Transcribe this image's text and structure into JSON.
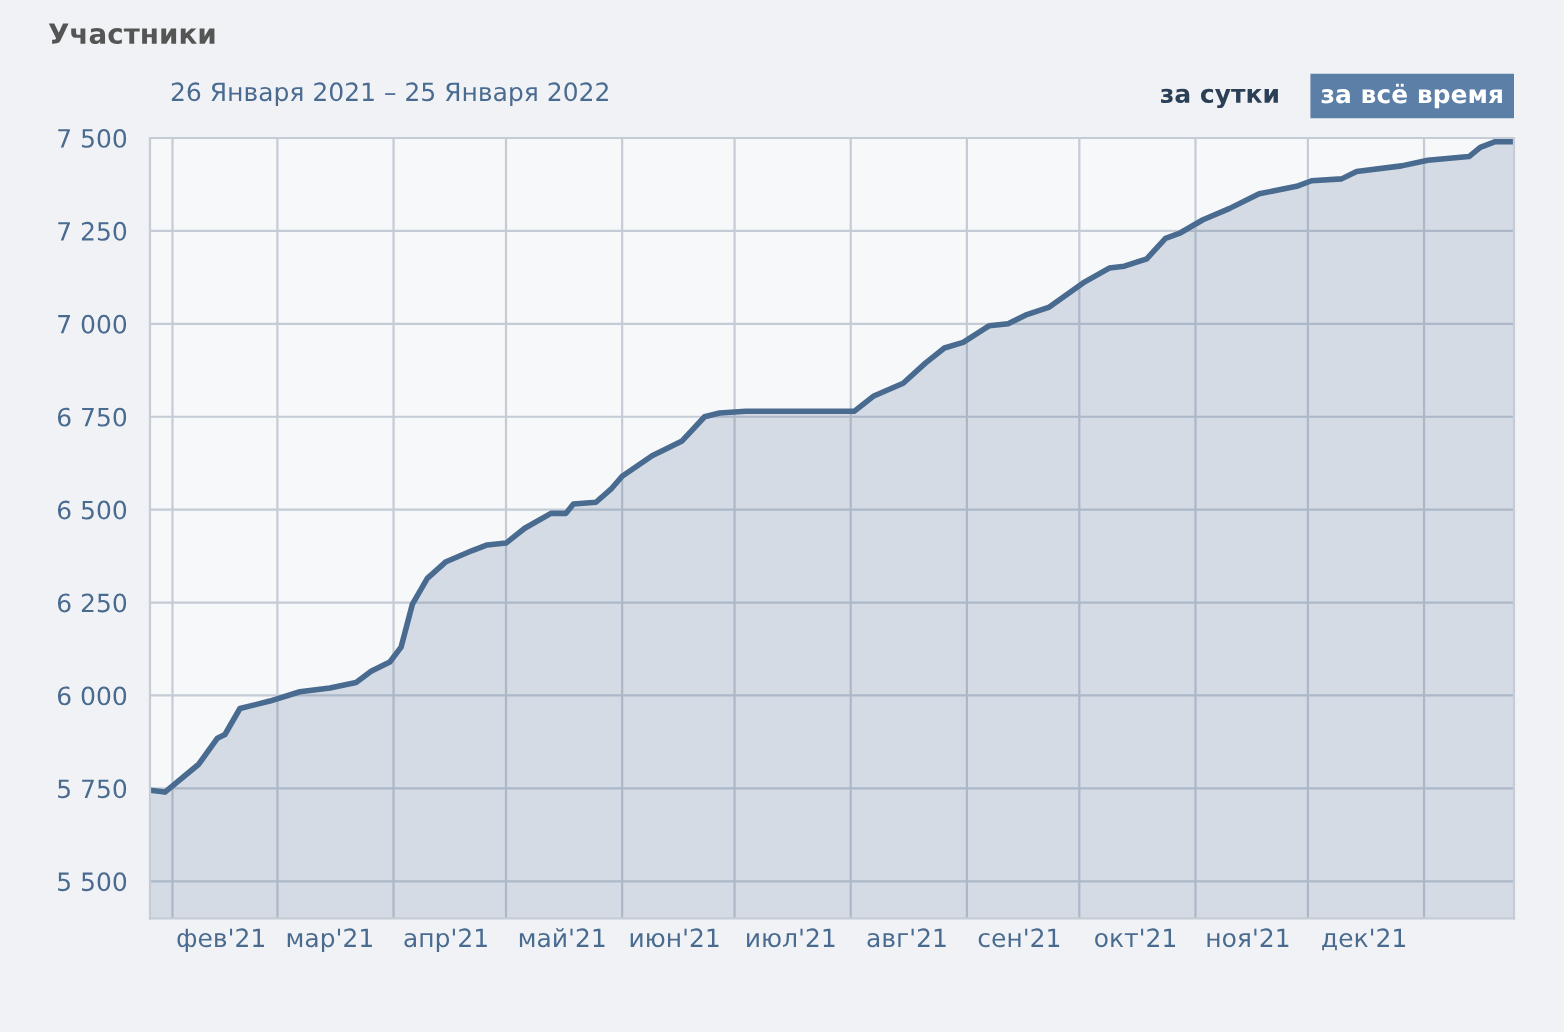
{
  "chart_data": {
    "type": "area",
    "title": "Участники",
    "subtitle": "26 Января 2021 – 25 Января 2022",
    "annotations": [
      "за сутки",
      "за всё время"
    ],
    "x": [
      "2021-01-26",
      "2021-01-30",
      "2021-02-08",
      "2021-02-13",
      "2021-02-15",
      "2021-02-19",
      "2021-02-27",
      "2021-03-07",
      "2021-03-15",
      "2021-03-22",
      "2021-03-26",
      "2021-03-31",
      "2021-04-03",
      "2021-04-06",
      "2021-04-10",
      "2021-04-15",
      "2021-04-22",
      "2021-04-26",
      "2021-05-01",
      "2021-05-06",
      "2021-05-13",
      "2021-05-17",
      "2021-05-19",
      "2021-05-25",
      "2021-05-29",
      "2021-06-01",
      "2021-06-09",
      "2021-06-17",
      "2021-06-23",
      "2021-06-27",
      "2021-07-04",
      "2021-07-12",
      "2021-08-02",
      "2021-08-07",
      "2021-08-15",
      "2021-08-21",
      "2021-08-26",
      "2021-08-31",
      "2021-09-07",
      "2021-09-12",
      "2021-09-17",
      "2021-09-23",
      "2021-10-02",
      "2021-10-09",
      "2021-10-13",
      "2021-10-19",
      "2021-10-24",
      "2021-10-28",
      "2021-11-03",
      "2021-11-10",
      "2021-11-18",
      "2021-11-28",
      "2021-12-02",
      "2021-12-10",
      "2021-12-14",
      "2021-12-26",
      "2022-01-02",
      "2022-01-13",
      "2022-01-16",
      "2022-01-20",
      "2022-01-25"
    ],
    "series": [
      {
        "color": "#4a6b90",
        "values": [
          5745,
          5740,
          5815,
          5885,
          5895,
          5965,
          5985,
          6010,
          6020,
          6035,
          6065,
          6090,
          6130,
          6245,
          6315,
          6360,
          6390,
          6405,
          6410,
          6450,
          6490,
          6490,
          6515,
          6520,
          6555,
          6590,
          6645,
          6685,
          6750,
          6760,
          6765,
          6765,
          6765,
          6805,
          6840,
          6895,
          6935,
          6950,
          6995,
          7000,
          7025,
          7045,
          7110,
          7150,
          7155,
          7175,
          7230,
          7245,
          7280,
          7310,
          7350,
          7370,
          7385,
          7390,
          7410,
          7425,
          7440,
          7450,
          7475,
          7490,
          7490
        ]
      }
    ],
    "xlim": [
      "2021-01-26",
      "2022-01-25"
    ],
    "xticks": [
      {
        "value": "2021-02-01",
        "label": null
      },
      {
        "value": "2021-03-01",
        "label": null
      },
      {
        "value": "2021-04-01",
        "label": null
      },
      {
        "value": "2021-05-01",
        "label": null
      },
      {
        "value": "2021-06-01",
        "label": null
      },
      {
        "value": "2021-07-01",
        "label": null
      },
      {
        "value": "2021-08-01",
        "label": null
      },
      {
        "value": "2021-09-01",
        "label": null
      },
      {
        "value": "2021-10-01",
        "label": null
      },
      {
        "value": "2021-11-01",
        "label": null
      },
      {
        "value": "2021-12-01",
        "label": null
      },
      {
        "value": "2022-01-01",
        "label": null
      },
      {
        "value": "2021-02-14",
        "label": "фев'21"
      },
      {
        "value": "2021-03-15",
        "label": "мар'21"
      },
      {
        "value": "2021-04-15",
        "label": "апр'21"
      },
      {
        "value": "2021-05-16",
        "label": "май'21"
      },
      {
        "value": "2021-06-15",
        "label": "июн'21"
      },
      {
        "value": "2021-07-16",
        "label": "июл'21"
      },
      {
        "value": "2021-08-16",
        "label": "авг'21"
      },
      {
        "value": "2021-09-15",
        "label": "сен'21"
      },
      {
        "value": "2021-10-16",
        "label": "окт'21"
      },
      {
        "value": "2021-11-15",
        "label": "ноя'21"
      },
      {
        "value": "2021-12-16",
        "label": "дек'21"
      }
    ],
    "ylim": [
      5400,
      7500
    ],
    "yticks": [
      {
        "value": 5500,
        "label": "5 500"
      },
      {
        "value": 5750,
        "label": "5 750"
      },
      {
        "value": 6000,
        "label": "6 000"
      },
      {
        "value": 6250,
        "label": "6 250"
      },
      {
        "value": 6500,
        "label": "6 500"
      },
      {
        "value": 6750,
        "label": "6 750"
      },
      {
        "value": 7000,
        "label": "7 000"
      },
      {
        "value": 7250,
        "label": "7 250"
      },
      {
        "value": 7500,
        "label": "7 500"
      }
    ],
    "grid": true,
    "marker": "none",
    "line_style": "solid"
  }
}
